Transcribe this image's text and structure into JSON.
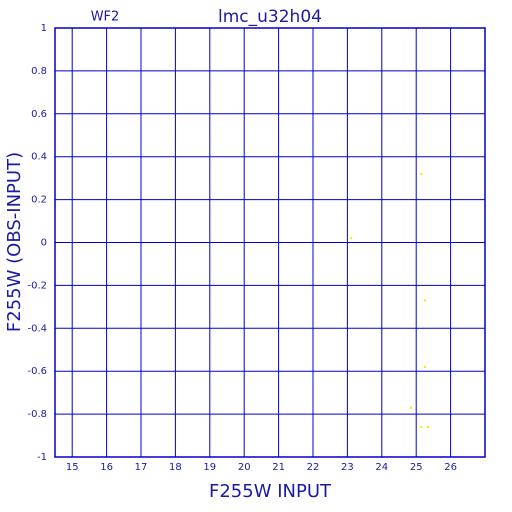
{
  "chart_data": {
    "type": "scatter",
    "title": "lmc_u32h04",
    "subtitle": "WF2",
    "x_label": "F255W INPUT",
    "y_label": "F255W (OBS-INPUT)",
    "x": [
      25.15,
      23.1,
      25.25,
      25.25,
      24.85,
      25.15,
      25.35
    ],
    "values": [
      0.32,
      0.02,
      -0.27,
      -0.58,
      -0.77,
      -0.86,
      -0.86
    ],
    "color": "#e8e800",
    "grid_color": "#0000cc",
    "xlim": [
      14.5,
      27
    ],
    "ylim": [
      -1,
      1
    ],
    "xticks": [
      15,
      16,
      17,
      18,
      19,
      20,
      21,
      22,
      23,
      24,
      25,
      26
    ],
    "yticks": [
      -1,
      -0.8,
      -0.6,
      -0.4,
      -0.2,
      0,
      0.2,
      0.4,
      0.6,
      0.8,
      1
    ],
    "grid": true
  }
}
